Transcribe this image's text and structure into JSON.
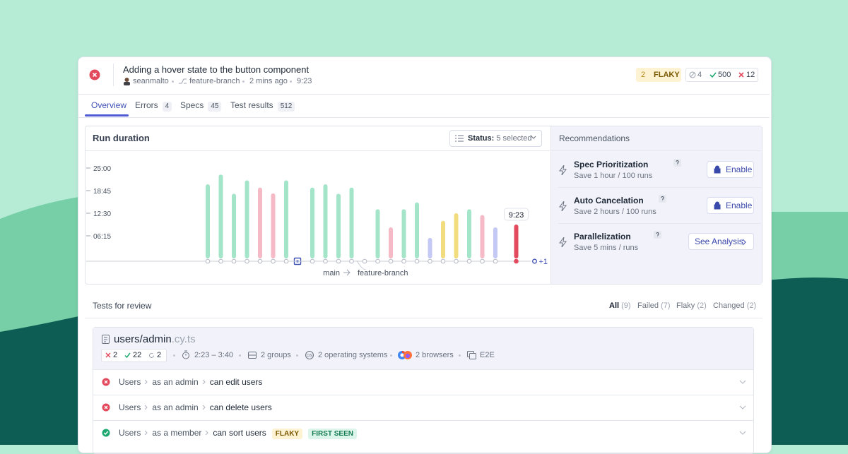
{
  "header": {
    "title": "Adding a hover state to the button component",
    "author": "seanmalto",
    "branch": "feature-branch",
    "time": "2 mins ago",
    "duration": "9:23",
    "flaky_count": 2,
    "flaky_label": "FLAKY",
    "skipped": 4,
    "passed": 500,
    "failed": 12
  },
  "tabs": [
    {
      "label": "Overview"
    },
    {
      "label": "Errors",
      "count": 4
    },
    {
      "label": "Specs",
      "count": 45
    },
    {
      "label": "Test results",
      "count": 512
    }
  ],
  "chart_data": {
    "type": "bar",
    "title": "Run duration",
    "status_label": "Status:",
    "status_value": "5 selected",
    "categories": [
      null,
      null,
      null,
      null,
      null,
      null,
      null,
      null,
      null,
      null,
      null,
      null,
      null,
      null,
      null,
      null,
      null,
      null,
      null,
      null,
      null,
      null,
      null,
      null
    ],
    "values": [
      20.5,
      23.2,
      17.9,
      21.6,
      19.6,
      18.0,
      21.6,
      null,
      19.6,
      20.5,
      17.9,
      19.6,
      null,
      13.6,
      8.6,
      13.6,
      15.5,
      5.7,
      10.4,
      12.5,
      13.6,
      12.0,
      8.6,
      9.38
    ],
    "value_labels": [
      null,
      null,
      null,
      null,
      null,
      null,
      null,
      null,
      null,
      null,
      null,
      null,
      null,
      null,
      null,
      null,
      null,
      null,
      null,
      null,
      null,
      null,
      null,
      "9:23"
    ],
    "colors": [
      "#a4e5ca",
      "#a4e5ca",
      "#a4e5ca",
      "#a4e5ca",
      "#f6bac6",
      "#f6bac6",
      "#a4e5ca",
      null,
      "#a4e5ca",
      "#a4e5ca",
      "#a4e5ca",
      "#a4e5ca",
      null,
      "#a4e5ca",
      "#f6bac6",
      "#a4e5ca",
      "#a4e5ca",
      "#c3c8f4",
      "#f1dc7e",
      "#f1dc7e",
      "#a4e5ca",
      "#f6bac6",
      "#c3c8f4",
      "#e2495c"
    ],
    "ylim": [
      0,
      25
    ],
    "yticks": [
      {
        "value": 6.25,
        "label": "06:15"
      },
      {
        "value": 12.5,
        "label": "12:30"
      },
      {
        "value": 18.75,
        "label": "18:45"
      },
      {
        "value": 25,
        "label": "25:00"
      }
    ],
    "branches": [
      "main",
      "feature-branch"
    ],
    "more_label": "+1"
  },
  "recommendations": {
    "title": "Recommendations",
    "items": [
      {
        "title": "Spec Prioritization",
        "subtitle": "Save 1 hour / 100 runs",
        "action": "Enable"
      },
      {
        "title": "Auto Cancelation",
        "subtitle": "Save 2 hours / 100 runs",
        "action": "Enable"
      },
      {
        "title": "Parallelization",
        "subtitle": "Save 5 mins / runs",
        "action": "See Analysis"
      }
    ]
  },
  "tests": {
    "title": "Tests for review",
    "filters": [
      {
        "label": "All",
        "count": 9
      },
      {
        "label": "Failed",
        "count": 7
      },
      {
        "label": "Flaky",
        "count": 2
      },
      {
        "label": "Changed",
        "count": 2
      }
    ],
    "spec": {
      "file": "users/admin",
      "ext": ".cy.ts",
      "failed": 2,
      "passed": 22,
      "pending": 2,
      "duration": "2:23 – 3:40",
      "groups": "2 groups",
      "os": "2 operating systems",
      "browsers": "2 browsers",
      "testing_type": "E2E"
    },
    "rows": [
      {
        "path": [
          "Users",
          "as an admin",
          "can edit users"
        ]
      },
      {
        "path": [
          "Users",
          "as an admin",
          "can delete users"
        ]
      },
      {
        "path": [
          "Users",
          "as a member",
          "can sort users"
        ],
        "badges": [
          "FLAKY",
          "FIRST SEEN"
        ]
      }
    ]
  }
}
